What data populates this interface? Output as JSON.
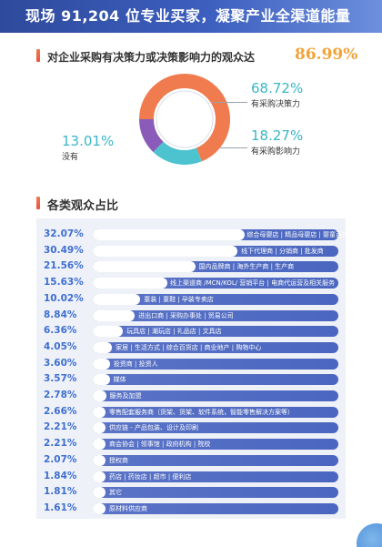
{
  "banner": {
    "text": "现场 91,204 位专业买家，凝聚产业全渠道能量"
  },
  "question": {
    "text": "对企业采购有决策力或决策影响力的观众达",
    "percent": "86.99%"
  },
  "colors": {
    "orange": "#f07b4f",
    "teal": "#4cc3cf",
    "purple": "#8a5bb8",
    "value_blue": "#3e6fd0",
    "bar_blue": "#4a66c0"
  },
  "chart_data": [
    {
      "type": "pie",
      "title": "",
      "slices": [
        {
          "label": "有采购决策力",
          "value": 68.72,
          "display": "68.72%",
          "color": "#f07b4f"
        },
        {
          "label": "有采购影响力",
          "value": 18.27,
          "display": "18.27%",
          "color": "#4cc3cf"
        },
        {
          "label": "没有",
          "value": 13.01,
          "display": "13.01%",
          "color": "#8a5bb8"
        }
      ]
    },
    {
      "type": "bar",
      "orientation": "horizontal",
      "title": "各类观众占比",
      "xlim": [
        0,
        32.07
      ],
      "categories": [
        "综合母婴店 | 精品母婴店 | 婴童百货",
        "线下代理商 | 分销商 | 批发商",
        "国内品牌商 | 海外生产商 | 生产商",
        "线上渠道商 /MCN/KOL/ 营销平台 | 电商代运营及相关服务",
        "童装 | 童鞋 | 孕装专卖店",
        "进出口商 | 采购办事处 | 贸易公司",
        "玩具店 | 潮玩店 | 礼品店 | 文具店",
        "家居 | 生活方式 | 综合百货店 | 商业地产 | 购物中心",
        "投资商 | 投资人",
        "媒体",
        "服务及加盟",
        "零售配套服务商（货架、货架、软件系统，智能零售解决方案等）",
        "供应链 - 产品包装、设计及印刷",
        "商会协会 | 领事馆 | 政府机构 | 院校",
        "授权商",
        "药店 | 药妆店 | 超市 | 便利店",
        "其它",
        "原材料供应商"
      ],
      "values": [
        32.07,
        30.49,
        21.56,
        15.63,
        10.02,
        8.84,
        6.36,
        4.05,
        3.6,
        3.57,
        2.78,
        2.66,
        2.21,
        2.21,
        2.07,
        1.84,
        1.81,
        1.61
      ],
      "labels": [
        "32.07%",
        "30.49%",
        "21.56%",
        "15.63%",
        "10.02%",
        "8.84%",
        "6.36%",
        "4.05%",
        "3.60%",
        "3.57%",
        "2.78%",
        "2.66%",
        "2.21%",
        "2.21%",
        "2.07%",
        "1.84%",
        "1.81%",
        "1.61%"
      ]
    }
  ]
}
